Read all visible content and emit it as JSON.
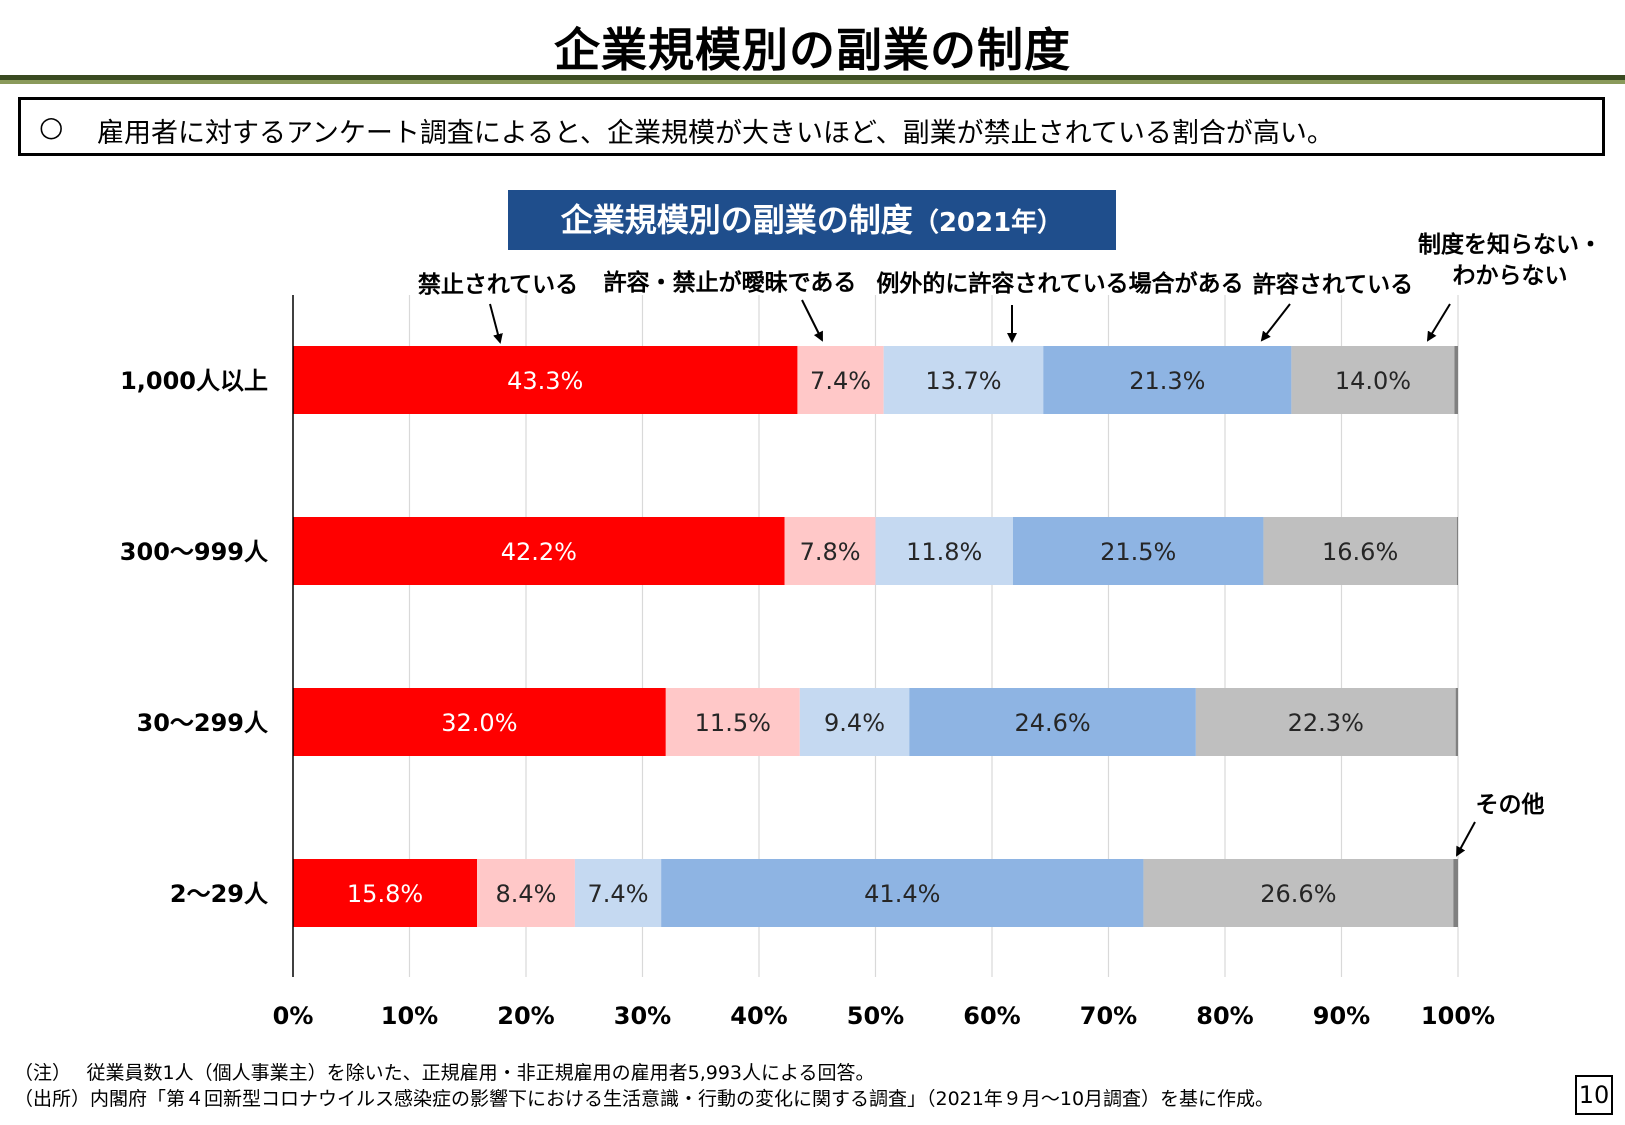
{
  "page": {
    "title": "企業規模別の副業の制度",
    "summary_bullet": "○",
    "summary": "雇用者に対するアンケート調査によると、企業規模が大きいほど、副業が禁止されている割合が高い。",
    "page_number": "10"
  },
  "chart_title": {
    "main": "企業規模別の副業の制度",
    "sub": "（2021年）"
  },
  "chart_data": {
    "type": "bar",
    "orientation": "horizontal",
    "stacked": true,
    "categories": [
      "1,000人以上",
      "300〜999人",
      "30〜299人",
      "2〜29人"
    ],
    "series": [
      {
        "name": "禁止されている",
        "color": "#ff0000",
        "label_color": "#ffffff",
        "values": [
          43.3,
          42.2,
          32.0,
          15.8
        ]
      },
      {
        "name": "許容・禁止が曖昧である",
        "color": "#ffc8c8",
        "label_color": "#262626",
        "values": [
          7.4,
          7.8,
          11.5,
          8.4
        ]
      },
      {
        "name": "例外的に許容されている場合がある",
        "color": "#c5d9f1",
        "label_color": "#262626",
        "values": [
          13.7,
          11.8,
          9.4,
          7.4
        ]
      },
      {
        "name": "許容されている",
        "color": "#8eb4e3",
        "label_color": "#262626",
        "values": [
          21.3,
          21.5,
          24.6,
          41.4
        ]
      },
      {
        "name": "制度を知らない・わからない",
        "color": "#bfbfbf",
        "label_color": "#262626",
        "values": [
          14.0,
          16.6,
          22.3,
          26.6
        ]
      },
      {
        "name": "その他",
        "color": "#808080",
        "label_color": "#262626",
        "values": [
          0.3,
          0.1,
          0.2,
          0.4
        ]
      }
    ],
    "data_labels": [
      [
        "43.3%",
        "7.4%",
        "13.7%",
        "21.3%",
        "14.0%"
      ],
      [
        "42.2%",
        "7.8%",
        "11.8%",
        "21.5%",
        "16.6%"
      ],
      [
        "32.0%",
        "11.5%",
        "9.4%",
        "24.6%",
        "22.3%"
      ],
      [
        "15.8%",
        "8.4%",
        "7.4%",
        "41.4%",
        "26.6%"
      ]
    ],
    "x_ticks": [
      "0%",
      "10%",
      "20%",
      "30%",
      "40%",
      "50%",
      "60%",
      "70%",
      "80%",
      "90%",
      "100%"
    ],
    "xlim": [
      0,
      100
    ],
    "grid": "vertical",
    "legend": "callout labels with arrows above the top bar",
    "annotations": [
      {
        "lines": [
          "禁止されている"
        ],
        "series": 0
      },
      {
        "lines": [
          "許容・禁止が曖昧である"
        ],
        "series": 1
      },
      {
        "lines": [
          "例外的に許容されている場合がある"
        ],
        "series": 2
      },
      {
        "lines": [
          "許容されている"
        ],
        "series": 3
      },
      {
        "lines": [
          "制度を知らない・",
          "わからない"
        ],
        "series": 4
      },
      {
        "lines": [
          "その他"
        ],
        "series": 5
      }
    ]
  },
  "notes": {
    "note1": "（注）　 従業員数1人（個人事業主）を除いた、正規雇用・非正規雇用の雇用者5,993人による回答。",
    "note2": "（出所）内閣府「第４回新型コロナウイルス感染症の影響下における生活意識・行動の変化に関する調査」（2021年９月〜10月調査）を基に作成。"
  }
}
